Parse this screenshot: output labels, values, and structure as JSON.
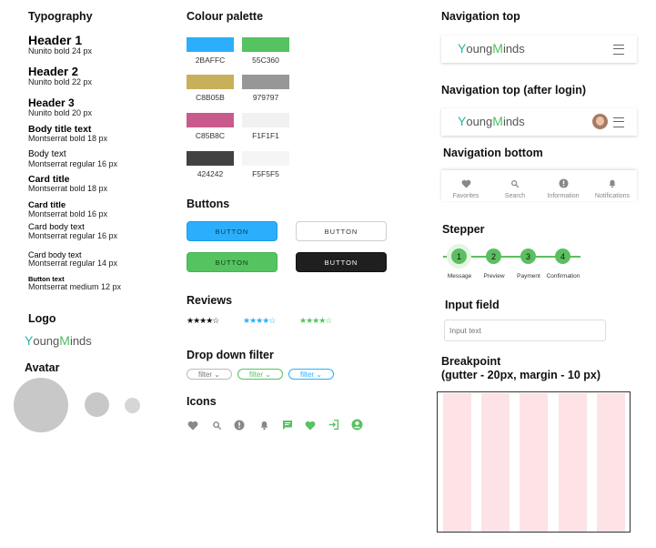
{
  "typography": {
    "title": "Typography",
    "items": [
      {
        "name": "Header 1",
        "meta": "Nunito bold 24 px"
      },
      {
        "name": "Header 2",
        "meta": "Nunito bold 22 px"
      },
      {
        "name": "Header 3",
        "meta": "Nunito bold 20 px"
      },
      {
        "name": "Body title text",
        "meta": "Montserrat bold 18 px"
      },
      {
        "name": "Body text",
        "meta": "Montserrat regular 16 px"
      },
      {
        "name": "Card title",
        "meta": "Montserrat bold 18 px"
      },
      {
        "name": "Card title",
        "meta": "Montserrat bold 16 px"
      },
      {
        "name": "Card body text",
        "meta": "Montserrat regular 16 px"
      },
      {
        "name": "Card body text",
        "meta": "Montserrat regular 14 px"
      },
      {
        "name": "Button text",
        "meta": "Montserrat medium 12 px"
      }
    ]
  },
  "logo": {
    "title": "Logo",
    "text_y": "Y",
    "text_oung": "oung",
    "text_m": "M",
    "text_inds": "inds"
  },
  "avatar": {
    "title": "Avatar"
  },
  "palette": {
    "title": "Colour palette",
    "colors": [
      {
        "hex": "#2BAFFC",
        "label": "2BAFFC"
      },
      {
        "hex": "#55C360",
        "label": "55C360"
      },
      {
        "hex": "#C8B05B",
        "label": "C8B05B"
      },
      {
        "hex": "#979797",
        "label": "979797"
      },
      {
        "hex": "#C85B8C",
        "label": "C85B8C"
      },
      {
        "hex": "#F1F1F1",
        "label": "F1F1F1"
      },
      {
        "hex": "#424242",
        "label": "424242"
      },
      {
        "hex": "#F5F5F5",
        "label": "F5F5F5"
      }
    ]
  },
  "buttons": {
    "title": "Buttons",
    "label": "BUTTON"
  },
  "reviews": {
    "title": "Reviews",
    "stars": "★★★★☆"
  },
  "dropdown": {
    "title": "Drop down filter",
    "label": "filter ⌄"
  },
  "icons": {
    "title": "Icons",
    "list": [
      "heart-icon",
      "search-icon",
      "alert-icon",
      "bell-icon",
      "chat-icon",
      "heart-green-icon",
      "login-icon",
      "account-icon"
    ]
  },
  "nav_top": {
    "title": "Navigation top"
  },
  "nav_top_login": {
    "title": "Navigation top (after login)"
  },
  "nav_bottom": {
    "title": "Navigation bottom",
    "items": [
      {
        "icon": "heart-icon",
        "label": "Favorites"
      },
      {
        "icon": "search-icon",
        "label": "Search"
      },
      {
        "icon": "info-icon",
        "label": "Information"
      },
      {
        "icon": "bell-icon",
        "label": "Notifications"
      }
    ]
  },
  "stepper": {
    "title": "Stepper",
    "steps": [
      {
        "num": "1",
        "label": "Message"
      },
      {
        "num": "2",
        "label": "Preview"
      },
      {
        "num": "3",
        "label": "Payment"
      },
      {
        "num": "4",
        "label": "Confirmation"
      }
    ]
  },
  "input": {
    "title": "Input field",
    "placeholder": "Input text"
  },
  "breakpoint": {
    "title_line1": "Breakpoint",
    "title_line2": "(gutter - 20px, margin - 10 px)"
  }
}
